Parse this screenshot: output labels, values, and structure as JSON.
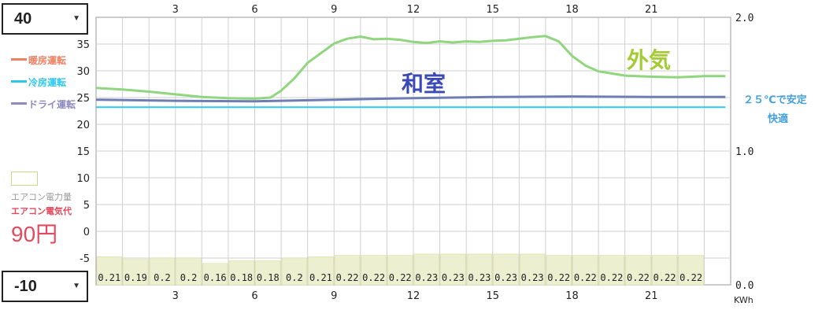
{
  "controls": {
    "top_select": "40",
    "bottom_select": "-10"
  },
  "legend": {
    "heating": "暖房運転",
    "cooling": "冷房運転",
    "dry": "ドライ運転",
    "power_amount": "エアコン電力量",
    "cost_label": "エアコン電気代",
    "cost_value": "90円"
  },
  "annotations": {
    "outdoor": "外気",
    "room": "和室",
    "note_line1": "２５℃で安定",
    "note_line2": "快適"
  },
  "colors": {
    "heating": "#f08060",
    "cooling": "#2ec8ee",
    "dry": "#8e8ac0",
    "outdoor_line": "#8fd67f",
    "room_line": "#6e7eb3",
    "kwh_bar": "#ecf0d0"
  },
  "chart_data": {
    "type": "line",
    "x_ticks": [
      "3",
      "6",
      "9",
      "12",
      "15",
      "18",
      "21"
    ],
    "left_axis": {
      "ticks": [
        "35",
        "30",
        "25",
        "20",
        "15",
        "10",
        "5",
        "0",
        "-5"
      ],
      "range": [
        -10,
        40
      ]
    },
    "right_axis": {
      "ticks": [
        "2.0",
        "1.0",
        "0.0"
      ],
      "range": [
        0,
        2
      ],
      "unit": "KWh"
    },
    "series": [
      {
        "name": "外気",
        "x": [
          0,
          1,
          2,
          3,
          4,
          5,
          6,
          6.6,
          7,
          7.5,
          8,
          8.5,
          9,
          9.5,
          10,
          10.5,
          11,
          11.5,
          12,
          12.5,
          13,
          13.5,
          14,
          14.5,
          15,
          15.5,
          16,
          16.5,
          17,
          17.5,
          18,
          18.5,
          19,
          19.5,
          20,
          21,
          22,
          23,
          23.8
        ],
        "values": [
          26.8,
          26.5,
          26.1,
          25.6,
          25.1,
          24.9,
          24.8,
          25.0,
          26.3,
          28.6,
          31.5,
          33.3,
          35.1,
          36.0,
          36.4,
          35.9,
          36.0,
          35.8,
          35.4,
          35.2,
          35.5,
          35.3,
          35.5,
          35.4,
          35.6,
          35.7,
          36.0,
          36.3,
          36.5,
          35.5,
          32.8,
          31.0,
          29.9,
          29.5,
          29.1,
          28.9,
          28.8,
          29.0,
          29.0
        ]
      },
      {
        "name": "和室",
        "x": [
          0,
          3,
          6,
          9,
          12,
          15,
          18,
          21,
          23.8
        ],
        "values": [
          24.6,
          24.4,
          24.3,
          24.6,
          24.9,
          25.1,
          25.2,
          25.1,
          25.1
        ]
      },
      {
        "name": "冷房運転",
        "x": [
          0,
          23.8
        ],
        "values": [
          23.2,
          23.2
        ]
      }
    ],
    "kwh_labels": [
      "0.21",
      "0.19",
      "0.2",
      "0.2",
      "0.16",
      "0.18",
      "0.18",
      "0.2",
      "0.21",
      "0.22",
      "0.22",
      "0.22",
      "0.23",
      "0.23",
      "0.23",
      "0.23",
      "0.23",
      "0.22",
      "0.22",
      "0.22",
      "0.22",
      "0.22",
      "0.22"
    ],
    "kwh_values": [
      0.21,
      0.19,
      0.2,
      0.2,
      0.16,
      0.18,
      0.18,
      0.2,
      0.21,
      0.22,
      0.22,
      0.22,
      0.23,
      0.23,
      0.23,
      0.23,
      0.23,
      0.22,
      0.22,
      0.22,
      0.22,
      0.22,
      0.22
    ]
  }
}
